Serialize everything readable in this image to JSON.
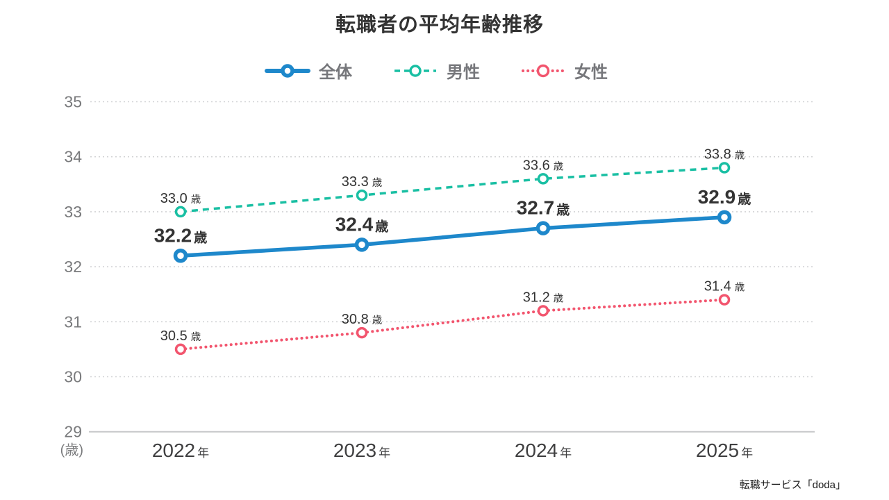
{
  "title": "転職者の平均年齢推移",
  "source": "転職サービス「doda」",
  "colors": {
    "overall": "#1e88cb",
    "male": "#19bfa3",
    "female": "#f2556e",
    "grid": "#d2d3d5",
    "axis_base": "#c7c8ca",
    "data_label": "#333333",
    "legend_text": "#76777b",
    "tick_text": "#797a7c",
    "year_text": "#3f3f40"
  },
  "chart_data": {
    "type": "line",
    "title": "転職者の平均年齢推移",
    "x_labels": [
      "2022",
      "2023",
      "2024",
      "2025"
    ],
    "x_unit": "年",
    "y_unit": "歳",
    "y_axis_unit_label": "(歳)",
    "ylim": [
      29,
      35
    ],
    "yticks": [
      35,
      34,
      33,
      32,
      31,
      30,
      29
    ],
    "grid": "horizontal-dotted",
    "legend_position": "top",
    "series": [
      {
        "name": "全体",
        "key": "overall",
        "color": "#1e88cb",
        "style": "solid",
        "emphasis": true,
        "values": [
          32.2,
          32.4,
          32.7,
          32.9
        ],
        "labels": [
          "32.2",
          "32.4",
          "32.7",
          "32.9"
        ]
      },
      {
        "name": "男性",
        "key": "male",
        "color": "#19bfa3",
        "style": "dashed",
        "emphasis": false,
        "values": [
          33.0,
          33.3,
          33.6,
          33.8
        ],
        "labels": [
          "33.0",
          "33.3",
          "33.6",
          "33.8"
        ]
      },
      {
        "name": "女性",
        "key": "female",
        "color": "#f2556e",
        "style": "dotted",
        "emphasis": false,
        "values": [
          30.5,
          30.8,
          31.2,
          31.4
        ],
        "labels": [
          "30.5",
          "30.8",
          "31.2",
          "31.4"
        ]
      }
    ]
  }
}
